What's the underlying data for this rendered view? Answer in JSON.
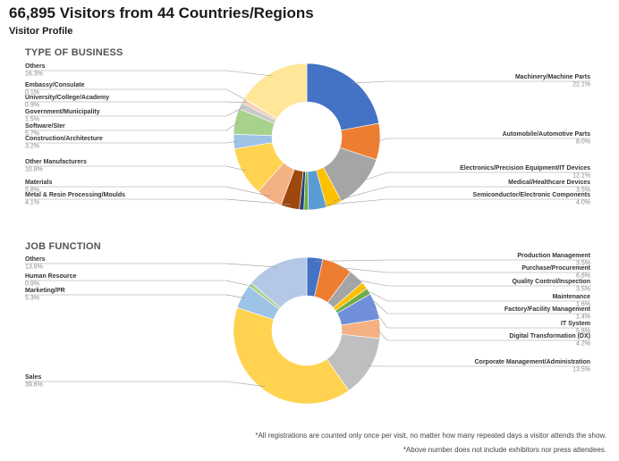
{
  "header": {
    "title": "66,895 Visitors from 44 Countries/Regions",
    "subtitle": "Visitor Profile"
  },
  "footnotes": [
    "*All registrations are counted only once per visit, no matter how many repeated days a visitor attends the show.",
    "*Above number does not include exhibitors nor press attendees."
  ],
  "chart_data": [
    {
      "type": "pie",
      "title": "TYPE OF BUSINESS",
      "slices": [
        {
          "label": "Machinery/Machine Parts",
          "value_text": "22.1%",
          "value": 22.1,
          "color": "#4472c4"
        },
        {
          "label": "Automobile/Automotive Parts",
          "value_text": "8.0%",
          "value": 8.0,
          "color": "#ed7d31"
        },
        {
          "label": "Electronics/Precision Equipment/IT Devices",
          "value_text": "12.1%",
          "value": 12.1,
          "color": "#a5a5a5"
        },
        {
          "label": "Medical/Healthcare Devices",
          "value_text": "3.5%",
          "value": 3.5,
          "color": "#ffc000"
        },
        {
          "label": "Semiconductor/Electronic Components",
          "value_text": "4.0%",
          "value": 4.0,
          "color": "#5b9bd5"
        },
        {
          "label": "",
          "value_text": "",
          "value": 1.0,
          "color": "#70ad47"
        },
        {
          "label": "",
          "value_text": "",
          "value": 1.0,
          "color": "#264478"
        },
        {
          "label": "Metal & Resin Processing/Moulds",
          "value_text": "4.1%",
          "value": 4.1,
          "color": "#9e480e"
        },
        {
          "label": "Materials",
          "value_text": "5.8%",
          "value": 5.8,
          "color": "#f4b183"
        },
        {
          "label": "Other Manufacturers",
          "value_text": "10.8%",
          "value": 10.8,
          "color": "#ffd34f"
        },
        {
          "label": "Construction/Architecture",
          "value_text": "3.2%",
          "value": 3.2,
          "color": "#9dc3e6"
        },
        {
          "label": "Software/SIer",
          "value_text": "5.7%",
          "value": 5.7,
          "color": "#a9d18e"
        },
        {
          "label": "Government/Municipality",
          "value_text": "1.5%",
          "value": 1.5,
          "color": "#c9c9c9"
        },
        {
          "label": "University/College/Academy",
          "value_text": "0.9%",
          "value": 0.9,
          "color": "#f8cbad"
        },
        {
          "label": "Embassy/Consulate",
          "value_text": "0.1%",
          "value": 0.1,
          "color": "#bdd7ee"
        },
        {
          "label": "Others",
          "value_text": "16.3%",
          "value": 16.3,
          "color": "#ffe699"
        }
      ]
    },
    {
      "type": "pie",
      "title": "JOB FUNCTION",
      "slices": [
        {
          "label": "Production Management",
          "value_text": "3.5%",
          "value": 3.5,
          "color": "#4472c4"
        },
        {
          "label": "Purchase/Procurement",
          "value_text": "6.6%",
          "value": 6.6,
          "color": "#ed7d31"
        },
        {
          "label": "Quality Control/Inspection",
          "value_text": "3.5%",
          "value": 3.5,
          "color": "#a5a5a5"
        },
        {
          "label": "Maintenance",
          "value_text": "1.6%",
          "value": 1.6,
          "color": "#ffc000"
        },
        {
          "label": "Factory/Facility Management",
          "value_text": "1.4%",
          "value": 1.4,
          "color": "#70ad47"
        },
        {
          "label": "IT System",
          "value_text": "5.8%",
          "value": 5.8,
          "color": "#6f8fd8"
        },
        {
          "label": "Digital Transformation (DX)",
          "value_text": "4.2%",
          "value": 4.2,
          "color": "#f4b183"
        },
        {
          "label": "Corporate Management/Administration",
          "value_text": "13.5%",
          "value": 13.5,
          "color": "#bfbfbf"
        },
        {
          "label": "Sales",
          "value_text": "39.6%",
          "value": 39.6,
          "color": "#ffd34f"
        },
        {
          "label": "Marketing/PR",
          "value_text": "5.3%",
          "value": 5.3,
          "color": "#9dc3e6"
        },
        {
          "label": "Human Resource",
          "value_text": "0.9%",
          "value": 0.9,
          "color": "#a9d18e"
        },
        {
          "label": "Others",
          "value_text": "13.6%",
          "value": 13.6,
          "color": "#b4c7e7"
        }
      ]
    }
  ]
}
